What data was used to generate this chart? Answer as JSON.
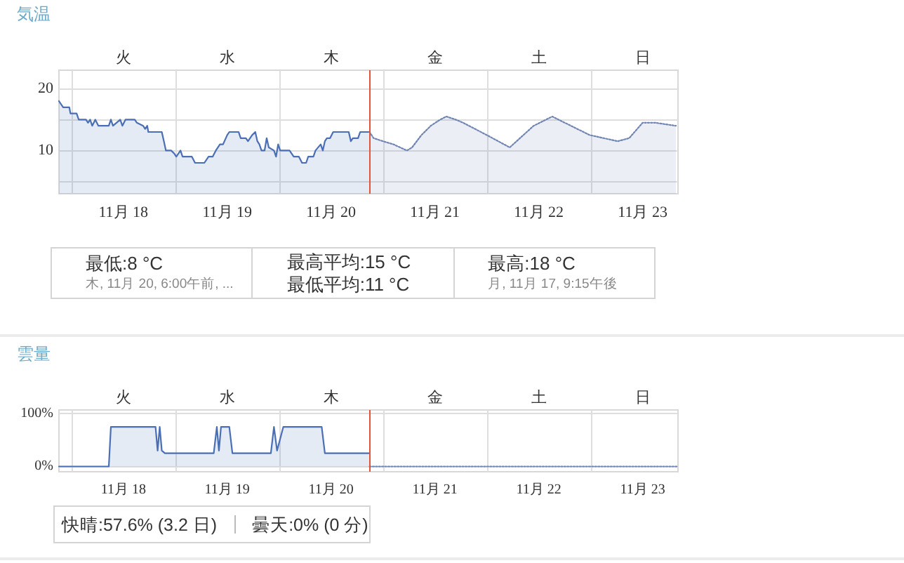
{
  "chart_data": [
    {
      "type": "area",
      "title": "気温",
      "xlim": [
        "--11-17T21:07",
        "--11-23T20:10"
      ],
      "xticks": [
        {
          "value": "--11-18T00:00",
          "label": null
        },
        {
          "value": "--11-18T12:00",
          "label": "11月 18"
        },
        {
          "value": "--11-19T00:00",
          "label": null
        },
        {
          "value": "--11-19T12:00",
          "label": "11月 19"
        },
        {
          "value": "--11-20T00:00",
          "label": null
        },
        {
          "value": "--11-20T12:00",
          "label": "11月 20"
        },
        {
          "value": "--11-21T00:00",
          "label": null
        },
        {
          "value": "--11-21T12:00",
          "label": "11月 21"
        },
        {
          "value": "--11-22T00:00",
          "label": null
        },
        {
          "value": "--11-22T12:00",
          "label": "11月 22"
        },
        {
          "value": "--11-23T00:00",
          "label": null
        },
        {
          "value": "--11-23T12:00",
          "label": "11月 23"
        }
      ],
      "ylim": [
        3,
        23
      ],
      "yticks": [
        {
          "value": 5,
          "label": null
        },
        10,
        {
          "value": 15,
          "label": null
        },
        20
      ],
      "grid": true,
      "series": [
        {
          "color": "#4a6fb5",
          "line_style": "solid",
          "x": [
            "--11-17T21:07",
            "--11-17T22:05",
            "--11-17T23:31",
            "--11-17T23:46",
            "--11-18T01:12",
            "--11-18T01:41",
            "--11-18T03:22",
            "--11-18T03:50",
            "--11-18T04:19",
            "--11-18T04:48",
            "--11-18T05:31",
            "--11-18T06:14",
            "--11-18T08:38",
            "--11-18T09:07",
            "--11-18T09:36",
            "--11-18T11:17",
            "--11-18T11:46",
            "--11-18T12:29",
            "--11-18T14:38",
            "--11-18T15:07",
            "--11-18T16:34",
            "--11-18T17:02",
            "--11-18T17:31",
            "--11-18T17:46",
            "--11-18T20:53",
            "--11-18T21:22",
            "--11-18T21:50",
            "--11-18T23:02",
            "--11-18T23:46",
            "--11-19T00:14",
            "--11-19T01:12",
            "--11-19T01:41",
            "--11-19T03:50",
            "--11-19T04:34",
            "--11-19T06:43",
            "--11-19T07:41",
            "--11-19T08:38",
            "--11-19T09:22",
            "--11-19T10:19",
            "--11-19T11:02",
            "--11-19T12:00",
            "--11-19T12:29",
            "--11-19T14:38",
            "--11-19T15:07",
            "--11-19T16:19",
            "--11-19T16:48",
            "--11-19T17:46",
            "--11-19T18:29",
            "--11-19T18:58",
            "--11-19T19:26",
            "--11-19T19:55",
            "--11-19T20:38",
            "--11-19T21:07",
            "--11-19T21:36",
            "--11-19T22:48",
            "--11-19T23:17",
            "--11-19T23:46",
            "--11-20T00:14",
            "--11-20T02:24",
            "--11-20T03:22",
            "--11-20T04:34",
            "--11-20T05:17",
            "--11-20T06:14",
            "--11-20T06:43",
            "--11-20T07:55",
            "--11-20T08:24",
            "--11-20T09:36",
            "--11-20T10:05",
            "--11-20T10:34",
            "--11-20T11:02",
            "--11-20T11:46",
            "--11-20T12:29",
            "--11-20T16:05",
            "--11-20T16:34",
            "--11-20T17:02",
            "--11-20T18:14",
            "--11-20T18:43",
            "--11-20T20:53"
          ],
          "values": [
            18,
            17,
            17,
            16,
            16,
            15,
            15,
            14.5,
            15,
            14,
            15,
            14,
            14,
            15,
            14,
            15,
            14,
            15,
            15,
            14.5,
            14,
            13.5,
            14,
            13,
            13,
            11.5,
            10,
            10,
            9.5,
            9,
            10,
            9,
            9,
            8,
            8,
            9,
            9,
            10,
            11,
            11,
            12.5,
            13,
            13,
            12,
            12,
            11.5,
            12.5,
            13,
            11.5,
            11,
            10,
            10,
            12,
            10.5,
            10,
            9,
            11,
            10,
            10,
            9,
            9,
            8,
            8,
            9,
            9,
            10,
            11,
            10,
            11.5,
            12,
            12,
            13,
            13,
            11.5,
            12,
            12,
            13,
            13
          ]
        },
        {
          "color": "#7085b3",
          "line_style": "dotted",
          "x": [
            "--11-20T20:53",
            "--11-20T21:50",
            "--11-21T00:00",
            "--11-21T02:24",
            "--11-21T05:31",
            "--11-21T06:43",
            "--11-21T08:53",
            "--11-21T11:02",
            "--11-21T13:12",
            "--11-21T14:38",
            "--11-21T16:48",
            "--11-21T18:29",
            "--11-22T00:00",
            "--11-22T05:17",
            "--11-22T10:48",
            "--11-22T15:07",
            "--11-22T19:26",
            "--11-22T23:46",
            "--11-23T06:14",
            "--11-23T08:53",
            "--11-23T12:00",
            "--11-23T14:53",
            "--11-23T19:41"
          ],
          "values": [
            13,
            12,
            11.5,
            11,
            10,
            10.5,
            12.5,
            14,
            15,
            15.5,
            15,
            14.5,
            12.5,
            10.5,
            14,
            15.5,
            14,
            12.5,
            11.5,
            12,
            14.5,
            14.5,
            14
          ]
        }
      ],
      "ref_lines": [
        {
          "axis": "x",
          "value": "--11-20T20:53",
          "color": "#e0553a"
        }
      ],
      "annotations": [
        "火",
        "水",
        "木",
        "金",
        "土",
        "日",
        "最低:8 °C",
        "木, 11月 20, 6:00午前, ...",
        "最高平均:15 °C",
        "最低平均:11 °C",
        "最高:18 °C",
        "月, 11月 17, 9:15午後"
      ]
    },
    {
      "type": "area",
      "title": "雲量",
      "xlim": [
        "--11-17T21:07",
        "--11-23T20:10"
      ],
      "xticks": [
        {
          "value": "--11-18T00:00",
          "label": null
        },
        {
          "value": "--11-18T12:00",
          "label": "11月 18"
        },
        {
          "value": "--11-19T00:00",
          "label": null
        },
        {
          "value": "--11-19T12:00",
          "label": "11月 19"
        },
        {
          "value": "--11-20T00:00",
          "label": null
        },
        {
          "value": "--11-20T12:00",
          "label": "11月 20"
        },
        {
          "value": "--11-21T00:00",
          "label": null
        },
        {
          "value": "--11-21T12:00",
          "label": "11月 21"
        },
        {
          "value": "--11-22T00:00",
          "label": null
        },
        {
          "value": "--11-22T12:00",
          "label": "11月 22"
        },
        {
          "value": "--11-23T00:00",
          "label": null
        },
        {
          "value": "--11-23T12:00",
          "label": "11月 23"
        }
      ],
      "ylim": [
        -10,
        107
      ],
      "yticks": [
        {
          "value": 0,
          "label": "0%"
        },
        {
          "value": 100,
          "label": "100%"
        }
      ],
      "grid": true,
      "series": [
        {
          "color": "#4a6fb5",
          "line_style": "solid",
          "x": [
            "--11-17T21:07",
            "--11-18T08:38",
            "--11-18T09:07",
            "--11-18T19:26",
            "--11-18T19:55",
            "--11-18T20:24",
            "--11-18T20:53",
            "--11-18T21:36",
            "--11-19T08:53",
            "--11-19T09:36",
            "--11-19T10:05",
            "--11-19T10:34",
            "--11-19T12:29",
            "--11-19T13:12",
            "--11-19T22:05",
            "--11-19T22:48",
            "--11-19T23:31",
            "--11-20T00:58",
            "--11-20T09:50",
            "--11-20T10:34",
            "--11-20T20:53"
          ],
          "values": [
            0,
            0,
            75,
            75,
            30,
            75,
            30,
            25,
            25,
            75,
            30,
            75,
            75,
            25,
            25,
            75,
            30,
            75,
            75,
            25,
            25
          ]
        },
        {
          "type": "line",
          "color": "#7085b3",
          "line_style": "dotted",
          "x": [
            "--11-20T20:53",
            "--11-23T20:10"
          ],
          "values": [
            0,
            0
          ]
        }
      ],
      "ref_lines": [
        {
          "axis": "x",
          "value": "--11-20T20:53",
          "color": "#e0553a"
        }
      ],
      "annotations": [
        "火",
        "水",
        "木",
        "金",
        "土",
        "日",
        "快晴:57.6% (3.2 日)",
        "曇天:0% (0 分)"
      ]
    }
  ]
}
